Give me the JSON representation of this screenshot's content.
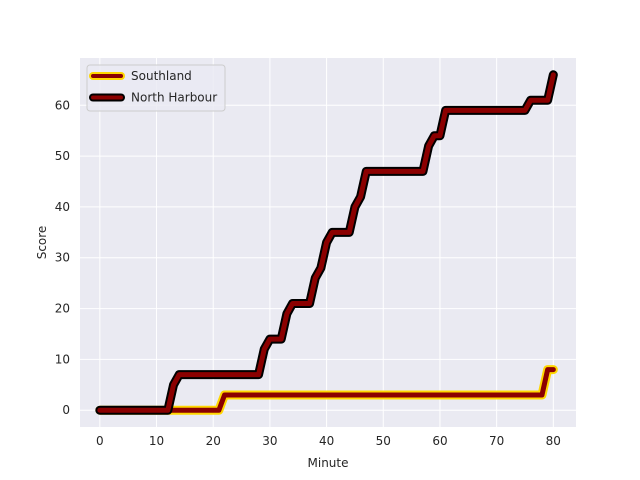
{
  "chart_data": {
    "type": "line",
    "title": "",
    "xlabel": "Minute",
    "ylabel": "Score",
    "xlim": [
      -3.5,
      84
    ],
    "ylim": [
      -3.3,
      69.3
    ],
    "xticks": [
      0,
      10,
      20,
      30,
      40,
      50,
      60,
      70,
      80
    ],
    "yticks": [
      0,
      10,
      20,
      30,
      40,
      50,
      60
    ],
    "grid": true,
    "background": "#eaeaf2",
    "legend_position": "top-left",
    "series": [
      {
        "name": "Southland",
        "color": "#8b0000",
        "outline_color": "#ffd700",
        "points": [
          [
            0,
            0
          ],
          [
            12,
            0
          ],
          [
            13,
            0
          ],
          [
            21,
            0
          ],
          [
            22,
            3
          ],
          [
            78,
            3
          ],
          [
            79,
            8
          ],
          [
            80,
            8
          ]
        ]
      },
      {
        "name": "North Harbour",
        "color": "#8b0000",
        "outline_color": "#000000",
        "points": [
          [
            0,
            0
          ],
          [
            12,
            0
          ],
          [
            13,
            5
          ],
          [
            14,
            7
          ],
          [
            28,
            7
          ],
          [
            29,
            12
          ],
          [
            30,
            14
          ],
          [
            32,
            14
          ],
          [
            33,
            19
          ],
          [
            34,
            21
          ],
          [
            37,
            21
          ],
          [
            38,
            26
          ],
          [
            39,
            28
          ],
          [
            40,
            33
          ],
          [
            41,
            35
          ],
          [
            44,
            35
          ],
          [
            45,
            40
          ],
          [
            46,
            42
          ],
          [
            47,
            47
          ],
          [
            57,
            47
          ],
          [
            58,
            52
          ],
          [
            59,
            54
          ],
          [
            60,
            54
          ],
          [
            61,
            59
          ],
          [
            75,
            59
          ],
          [
            76,
            61
          ],
          [
            79,
            61
          ],
          [
            80,
            66
          ]
        ]
      }
    ]
  }
}
